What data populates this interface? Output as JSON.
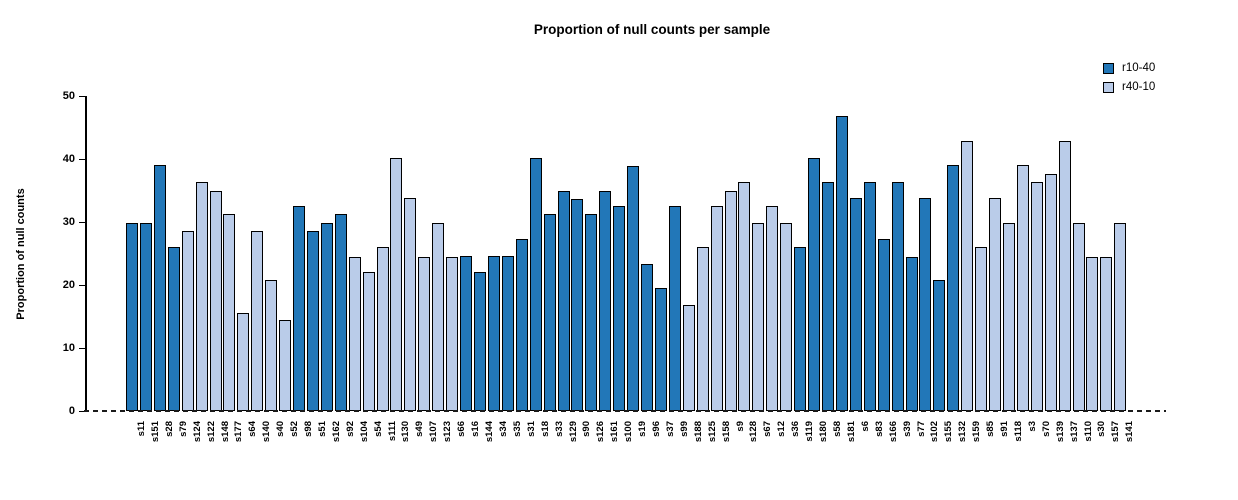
{
  "title": "Proportion of null counts per sample",
  "y_axis": {
    "label": "Proportion of null counts",
    "ticks": [
      0,
      10,
      20,
      30,
      40,
      50
    ]
  },
  "legend": {
    "items": [
      {
        "label": "r10-40",
        "color": "#2277B8"
      },
      {
        "label": "r40-10",
        "color": "#BACCE9"
      }
    ]
  },
  "chart_data": {
    "type": "bar",
    "title": "Proportion of null counts per sample",
    "xlabel": "",
    "ylabel": "Proportion of null counts",
    "ylim": [
      0,
      50
    ],
    "grid": false,
    "legend_position": "top-right",
    "series_colors": {
      "r10-40": "#2277B8",
      "r40-10": "#BACCE9"
    },
    "bars": [
      {
        "label": "s11",
        "value": 29.8,
        "series": "r10-40"
      },
      {
        "label": "s151",
        "value": 29.8,
        "series": "r10-40"
      },
      {
        "label": "s28",
        "value": 39.0,
        "series": "r10-40"
      },
      {
        "label": "s79",
        "value": 26.0,
        "series": "r10-40"
      },
      {
        "label": "s124",
        "value": 28.6,
        "series": "r40-10"
      },
      {
        "label": "s122",
        "value": 36.4,
        "series": "r40-10"
      },
      {
        "label": "s148",
        "value": 35.0,
        "series": "r40-10"
      },
      {
        "label": "s177",
        "value": 31.2,
        "series": "r40-10"
      },
      {
        "label": "s64",
        "value": 15.6,
        "series": "r40-10"
      },
      {
        "label": "s140",
        "value": 28.5,
        "series": "r40-10"
      },
      {
        "label": "s40",
        "value": 20.8,
        "series": "r40-10"
      },
      {
        "label": "s52",
        "value": 14.4,
        "series": "r40-10"
      },
      {
        "label": "s98",
        "value": 32.5,
        "series": "r10-40"
      },
      {
        "label": "s51",
        "value": 28.6,
        "series": "r10-40"
      },
      {
        "label": "s162",
        "value": 29.9,
        "series": "r10-40"
      },
      {
        "label": "s92",
        "value": 31.2,
        "series": "r10-40"
      },
      {
        "label": "s104",
        "value": 24.5,
        "series": "r40-10"
      },
      {
        "label": "s54",
        "value": 22.1,
        "series": "r40-10"
      },
      {
        "label": "s111",
        "value": 26.1,
        "series": "r40-10"
      },
      {
        "label": "s130",
        "value": 40.2,
        "series": "r40-10"
      },
      {
        "label": "s49",
        "value": 33.8,
        "series": "r40-10"
      },
      {
        "label": "s107",
        "value": 24.5,
        "series": "r40-10"
      },
      {
        "label": "s123",
        "value": 29.8,
        "series": "r40-10"
      },
      {
        "label": "s66",
        "value": 24.5,
        "series": "r40-10"
      },
      {
        "label": "s16",
        "value": 24.6,
        "series": "r10-40"
      },
      {
        "label": "s144",
        "value": 22.1,
        "series": "r10-40"
      },
      {
        "label": "s34",
        "value": 24.6,
        "series": "r10-40"
      },
      {
        "label": "s35",
        "value": 24.6,
        "series": "r10-40"
      },
      {
        "label": "s31",
        "value": 27.3,
        "series": "r10-40"
      },
      {
        "label": "s18",
        "value": 40.1,
        "series": "r10-40"
      },
      {
        "label": "s33",
        "value": 31.2,
        "series": "r10-40"
      },
      {
        "label": "s129",
        "value": 35.0,
        "series": "r10-40"
      },
      {
        "label": "s90",
        "value": 33.7,
        "series": "r10-40"
      },
      {
        "label": "s126",
        "value": 31.2,
        "series": "r10-40"
      },
      {
        "label": "s161",
        "value": 35.0,
        "series": "r10-40"
      },
      {
        "label": "s100",
        "value": 32.5,
        "series": "r10-40"
      },
      {
        "label": "s19",
        "value": 38.9,
        "series": "r10-40"
      },
      {
        "label": "s96",
        "value": 23.4,
        "series": "r10-40"
      },
      {
        "label": "s37",
        "value": 19.6,
        "series": "r10-40"
      },
      {
        "label": "s99",
        "value": 32.5,
        "series": "r10-40"
      },
      {
        "label": "s188",
        "value": 16.9,
        "series": "r40-10"
      },
      {
        "label": "s125",
        "value": 26.0,
        "series": "r40-10"
      },
      {
        "label": "s158",
        "value": 32.5,
        "series": "r40-10"
      },
      {
        "label": "s9",
        "value": 35.0,
        "series": "r40-10"
      },
      {
        "label": "s128",
        "value": 36.4,
        "series": "r40-10"
      },
      {
        "label": "s67",
        "value": 29.8,
        "series": "r40-10"
      },
      {
        "label": "s12",
        "value": 32.5,
        "series": "r40-10"
      },
      {
        "label": "s36",
        "value": 29.8,
        "series": "r40-10"
      },
      {
        "label": "s119",
        "value": 26.0,
        "series": "r10-40"
      },
      {
        "label": "s180",
        "value": 40.2,
        "series": "r10-40"
      },
      {
        "label": "s58",
        "value": 36.4,
        "series": "r10-40"
      },
      {
        "label": "s181",
        "value": 46.8,
        "series": "r10-40"
      },
      {
        "label": "s6",
        "value": 33.8,
        "series": "r10-40"
      },
      {
        "label": "s83",
        "value": 36.4,
        "series": "r10-40"
      },
      {
        "label": "s166",
        "value": 27.3,
        "series": "r10-40"
      },
      {
        "label": "s39",
        "value": 36.4,
        "series": "r10-40"
      },
      {
        "label": "s77",
        "value": 24.5,
        "series": "r10-40"
      },
      {
        "label": "s102",
        "value": 33.8,
        "series": "r10-40"
      },
      {
        "label": "s155",
        "value": 20.8,
        "series": "r10-40"
      },
      {
        "label": "s132",
        "value": 39.0,
        "series": "r10-40"
      },
      {
        "label": "s159",
        "value": 42.8,
        "series": "r40-10"
      },
      {
        "label": "s85",
        "value": 26.0,
        "series": "r40-10"
      },
      {
        "label": "s91",
        "value": 33.8,
        "series": "r40-10"
      },
      {
        "label": "s118",
        "value": 29.8,
        "series": "r40-10"
      },
      {
        "label": "s3",
        "value": 39.0,
        "series": "r40-10"
      },
      {
        "label": "s70",
        "value": 36.4,
        "series": "r40-10"
      },
      {
        "label": "s139",
        "value": 37.6,
        "series": "r40-10"
      },
      {
        "label": "s137",
        "value": 42.8,
        "series": "r40-10"
      },
      {
        "label": "s110",
        "value": 29.8,
        "series": "r40-10"
      },
      {
        "label": "s30",
        "value": 24.5,
        "series": "r40-10"
      },
      {
        "label": "s157",
        "value": 24.5,
        "series": "r40-10"
      },
      {
        "label": "s141",
        "value": 29.8,
        "series": "r40-10"
      }
    ]
  }
}
